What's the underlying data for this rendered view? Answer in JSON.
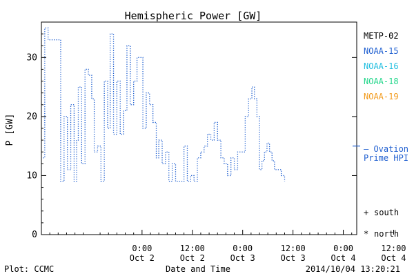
{
  "chart_data": {
    "type": "line",
    "title": "Hemispheric Power [GW]",
    "xlabel": "Date and Time",
    "ylabel": "P [GW]",
    "ylim": [
      0,
      36
    ],
    "xlim": [
      -6,
      12.8
    ],
    "x_unit": "hours since 2014-10-02 00:00",
    "yticks": [
      0,
      10,
      20,
      30
    ],
    "xticks": [
      {
        "x": 0,
        "time": "0:00",
        "date": "Oct 2"
      },
      {
        "x": 3,
        "time": "12:00",
        "date": "Oct 2"
      },
      {
        "x": 6,
        "time": "0:00",
        "date": "Oct 3"
      },
      {
        "x": 9,
        "time": "12:00",
        "date": "Oct 3"
      },
      {
        "x": 12,
        "time": "0:00",
        "date": "Oct 4"
      },
      {
        "x": 15,
        "time": "12:00",
        "date": "Oct 4"
      }
    ],
    "legend_position": "right",
    "series": [
      {
        "name": "METP-02",
        "color": "#000000",
        "points": []
      },
      {
        "name": "NOAA-15",
        "color": "#1f5fd0",
        "style": "dotted-step",
        "points": [
          [
            -5.9,
            13
          ],
          [
            -5.8,
            35
          ],
          [
            -5.6,
            33
          ],
          [
            -4.9,
            33
          ],
          [
            -4.85,
            9
          ],
          [
            -4.65,
            20
          ],
          [
            -4.45,
            11
          ],
          [
            -4.25,
            22
          ],
          [
            -4.05,
            9
          ],
          [
            -3.9,
            16
          ],
          [
            -3.8,
            25
          ],
          [
            -3.6,
            12
          ],
          [
            -3.4,
            28
          ],
          [
            -3.2,
            27
          ],
          [
            -3.0,
            23
          ],
          [
            -2.85,
            14
          ],
          [
            -2.65,
            15
          ],
          [
            -2.45,
            9
          ],
          [
            -2.25,
            26
          ],
          [
            -2.05,
            18
          ],
          [
            -1.9,
            34
          ],
          [
            -1.7,
            17
          ],
          [
            -1.5,
            26
          ],
          [
            -1.3,
            17
          ],
          [
            -1.1,
            21
          ],
          [
            -0.9,
            32
          ],
          [
            -0.7,
            22
          ],
          [
            -0.5,
            26
          ],
          [
            -0.3,
            30
          ],
          [
            0.05,
            18
          ],
          [
            0.25,
            24
          ],
          [
            0.45,
            22
          ],
          [
            0.65,
            19
          ],
          [
            0.85,
            13
          ],
          [
            1.0,
            16
          ],
          [
            1.2,
            12
          ],
          [
            1.4,
            14
          ],
          [
            1.6,
            9
          ],
          [
            1.8,
            12
          ],
          [
            2.0,
            9
          ],
          [
            2.3,
            9
          ],
          [
            2.5,
            15
          ],
          [
            2.7,
            9
          ],
          [
            2.9,
            10
          ],
          [
            3.1,
            9
          ],
          [
            3.3,
            13
          ],
          [
            3.5,
            14
          ],
          [
            3.7,
            15
          ],
          [
            3.9,
            17
          ],
          [
            4.1,
            16
          ],
          [
            4.3,
            19
          ],
          [
            4.5,
            16
          ],
          [
            4.7,
            13
          ],
          [
            4.9,
            12
          ],
          [
            5.1,
            10
          ],
          [
            5.3,
            13
          ],
          [
            5.5,
            11
          ],
          [
            5.7,
            14
          ],
          [
            6.0,
            14
          ],
          [
            6.15,
            20
          ],
          [
            6.35,
            23
          ],
          [
            6.55,
            25
          ],
          [
            6.7,
            23
          ],
          [
            6.85,
            20
          ],
          [
            7.0,
            11
          ],
          [
            7.15,
            12.5
          ],
          [
            7.3,
            14
          ],
          [
            7.45,
            15.5
          ],
          [
            7.6,
            14
          ],
          [
            7.75,
            12.5
          ],
          [
            7.9,
            11
          ],
          [
            8.1,
            11
          ],
          [
            8.3,
            10
          ],
          [
            8.5,
            9
          ]
        ]
      },
      {
        "name": "NOAA-16",
        "color": "#22bfe0",
        "points": []
      },
      {
        "name": "NOAA-18",
        "color": "#22d68a",
        "points": []
      },
      {
        "name": "NOAA-19",
        "color": "#f29a1a",
        "points": []
      }
    ],
    "reference_line": {
      "label_line1": "— Ovation",
      "label_line2": "Prime HPI",
      "value": 15,
      "color": "#1f5fd0"
    },
    "markers_legend": [
      {
        "symbol": "+",
        "label": "south"
      },
      {
        "symbol": "*",
        "label": "north"
      }
    ]
  },
  "footer": {
    "plot_credit": "Plot: CCMC",
    "timestamp": "2014/10/04 13:20:21"
  }
}
